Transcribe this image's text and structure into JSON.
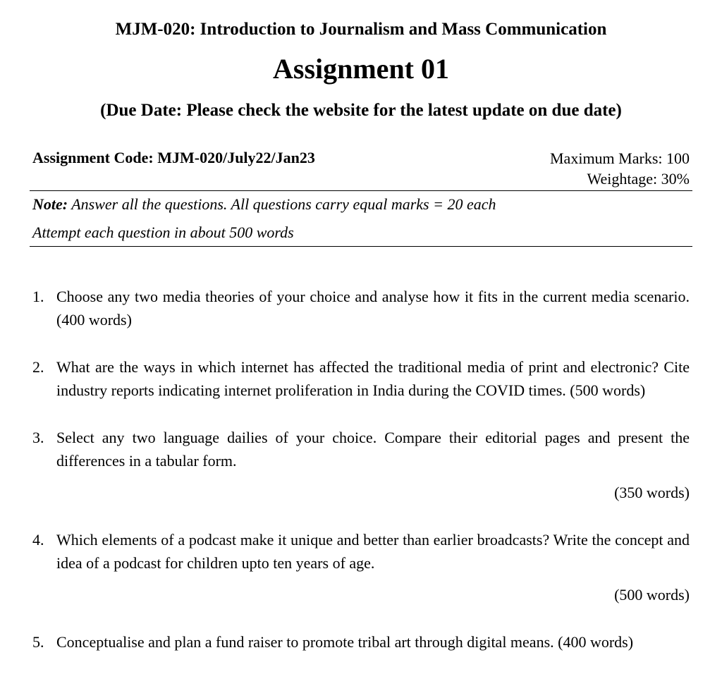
{
  "header": {
    "course_title": "MJM-020: Introduction to Journalism and Mass Communication",
    "assignment_title": "Assignment 01",
    "due_date": "(Due Date: Please check the website for the latest update on due date)"
  },
  "meta": {
    "assignment_code_label": "Assignment Code: MJM-020/July22/Jan23",
    "max_marks": "Maximum Marks: 100",
    "weightage": "Weightage: 30%"
  },
  "instructions": {
    "note_label": "Note:",
    "note_text": " Answer all the questions. All questions carry equal marks = 20 each",
    "attempt_text": "Attempt each question in about 500 words"
  },
  "questions": [
    {
      "num": "1.",
      "text": "Choose any two media theories of your choice and analyse how it fits in the current media scenario. (400 words)",
      "word_count_right": ""
    },
    {
      "num": "2.",
      "text": "What are the ways in which internet has affected the traditional media of print and electronic? Cite industry reports indicating internet proliferation in India during the COVID times. (500 words)",
      "word_count_right": ""
    },
    {
      "num": "3.",
      "text": "Select any two language dailies of your choice. Compare their editorial pages and present the differences in a tabular form.",
      "word_count_right": "(350 words)"
    },
    {
      "num": "4.",
      "text": "Which elements of a podcast make it unique and better than earlier broadcasts? Write the concept and idea of a podcast for children upto ten years of age.",
      "word_count_right": "(500 words)"
    },
    {
      "num": "5.",
      "text": "Conceptualise and plan a fund raiser to promote tribal art through digital means. (400 words)",
      "word_count_right": ""
    }
  ]
}
